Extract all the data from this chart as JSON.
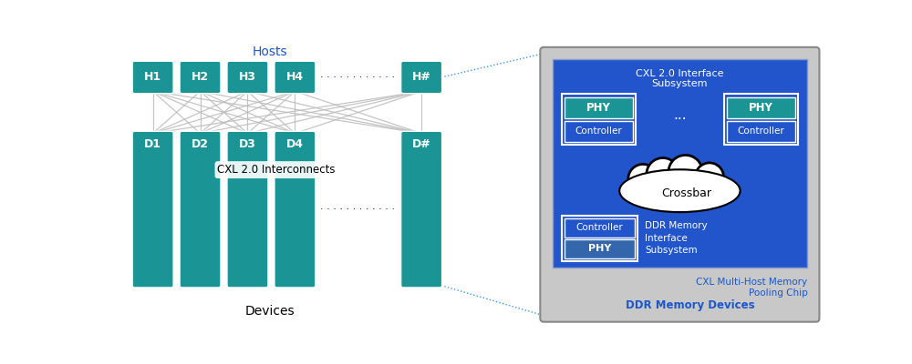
{
  "bg_color": "#ffffff",
  "teal_color": "#1a9494",
  "blue_inner": "#2255cc",
  "blue_label": "#1a56cc",
  "gray_outer": "#c8c8c8",
  "interconnect_color": "#bbbbbb",
  "dot_color": "#3399ff",
  "hosts": [
    "H1",
    "H2",
    "H3",
    "H4",
    "H#"
  ],
  "devices": [
    "D1",
    "D2",
    "D3",
    "D4",
    "D#"
  ],
  "hosts_label": "Hosts",
  "devices_label": "Devices",
  "interconnects_label": "CXL 2.0 Interconnects",
  "chip_label": "CXL Multi-Host Memory\nPooling Chip",
  "ddr_devices_label": "DDR Memory Devices",
  "cxl_interface_label": "CXL 2.0 Interface\nSubsystem",
  "ddr_interface_label": "DDR Memory\nInterface\nSubsystem",
  "crossbar_label": "Crossbar"
}
